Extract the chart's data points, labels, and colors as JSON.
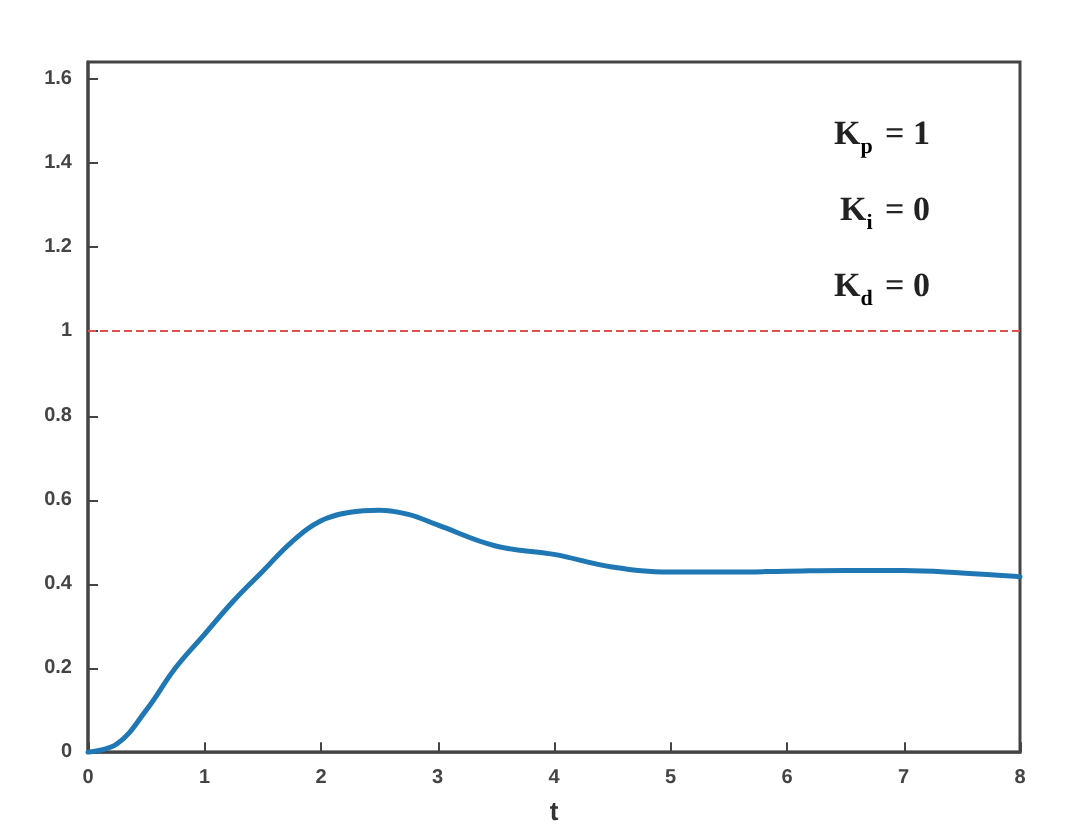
{
  "chart_data": {
    "type": "line",
    "xlabel": "t",
    "x": [
      0,
      0.25,
      0.5,
      0.75,
      1,
      1.25,
      1.5,
      1.75,
      2,
      2.25,
      2.5,
      2.75,
      3,
      3.5,
      4,
      4.5,
      5,
      5.5,
      6,
      6.5,
      7,
      7.5,
      8
    ],
    "series": [
      {
        "color": "#1f77b4",
        "values": [
          0,
          0.02,
          0.1,
          0.2,
          0.28,
          0.36,
          0.43,
          0.5,
          0.55,
          0.57,
          0.575,
          0.565,
          0.54,
          0.49,
          0.47,
          0.44,
          0.428,
          0.428,
          0.43,
          0.432,
          0.432,
          0.426,
          0.417
        ]
      }
    ],
    "xlim": [
      0,
      8
    ],
    "xticks": [
      0,
      1,
      2,
      3,
      4,
      5,
      6,
      7,
      8
    ],
    "ylim": [
      0,
      1.64
    ],
    "yticks": [
      0,
      0.2,
      0.4,
      0.6,
      0.8,
      1,
      1.2,
      1.4,
      1.6
    ],
    "ref_lines": [
      {
        "axis": "y",
        "value": 1,
        "color": "#e05050",
        "line_style": "dashed"
      }
    ],
    "annotations": [
      "K$_{p}$ = 1",
      "K$_{i}$ = 0",
      "K$_{d}$ = 0"
    ],
    "grid": false,
    "marker": "none",
    "line_style": "solid"
  }
}
